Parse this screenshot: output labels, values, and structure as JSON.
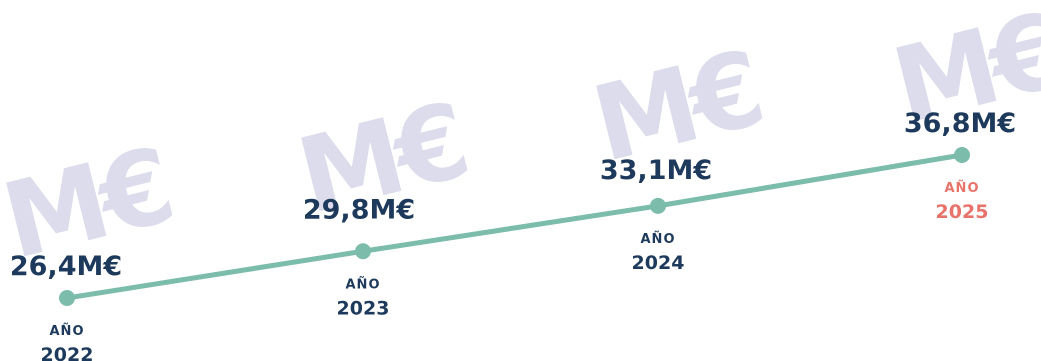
{
  "watermark_text": "M€",
  "colors": {
    "line": "#7cbcab",
    "point": "#7cbcab",
    "value_text": "#1d3a5c",
    "year_text": "#1d3a5c",
    "highlight_year_text": "#e8736a",
    "watermark": "#dcdcec"
  },
  "chart_data": {
    "type": "line",
    "title": "",
    "xlabel": "",
    "ylabel": "",
    "unit": "M€",
    "ylim": [
      25,
      38
    ],
    "grid": false,
    "highlight_index": 3,
    "points": [
      {
        "year_word": "AÑO",
        "year": "2022",
        "value": 26.4,
        "value_label": "26,4M€"
      },
      {
        "year_word": "AÑO",
        "year": "2023",
        "value": 29.8,
        "value_label": "29,8M€"
      },
      {
        "year_word": "AÑO",
        "year": "2024",
        "value": 33.1,
        "value_label": "33,1M€"
      },
      {
        "year_word": "AÑO",
        "year": "2025",
        "value": 36.8,
        "value_label": "36,8M€"
      }
    ]
  }
}
